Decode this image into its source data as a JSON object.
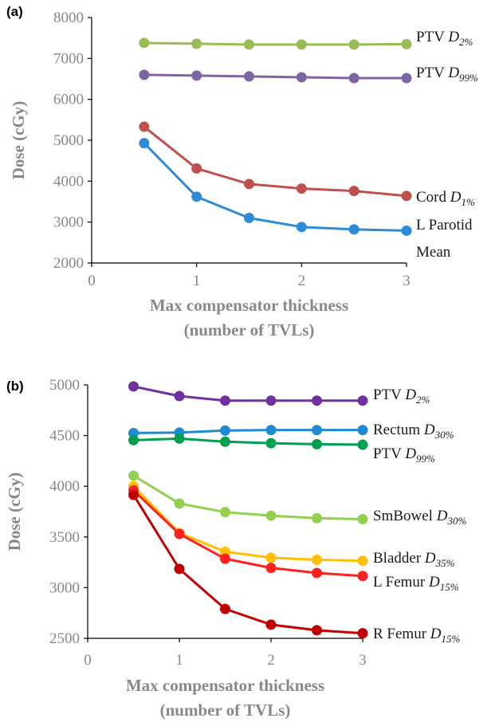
{
  "chart_data": [
    {
      "type": "line",
      "panel_label": "(a)",
      "xlabel": [
        "Max compensator thickness",
        "(number of TVLs)"
      ],
      "ylabel": "Dose (cGy)",
      "xlim": [
        0,
        3
      ],
      "ylim": [
        2000,
        8000
      ],
      "xticks": [
        0,
        1,
        2,
        3
      ],
      "yticks": [
        2000,
        3000,
        4000,
        5000,
        6000,
        7000,
        8000
      ],
      "x": [
        0.5,
        1,
        1.5,
        2,
        2.5,
        3
      ],
      "series": [
        {
          "label_main": "PTV ",
          "label_sub": "D",
          "label_subsub": "2%",
          "color": "#9bbb59",
          "values": [
            7380,
            7360,
            7340,
            7340,
            7340,
            7350
          ]
        },
        {
          "label_main": "PTV ",
          "label_sub": "D",
          "label_subsub": "99%",
          "color": "#8064a2",
          "values": [
            6600,
            6580,
            6560,
            6540,
            6520,
            6520
          ]
        },
        {
          "label_main": "Cord ",
          "label_sub": "D",
          "label_subsub": "1%",
          "color": "#c0504d",
          "values": [
            5330,
            4310,
            3930,
            3820,
            3760,
            3640
          ]
        },
        {
          "label_main": "L Parotid",
          "label_line2": "Mean",
          "color": "#2e8bd8",
          "values": [
            4930,
            3620,
            3100,
            2880,
            2820,
            2790
          ]
        }
      ]
    },
    {
      "type": "line",
      "panel_label": "(b)",
      "xlabel": [
        "Max compensator thickness",
        "(number of TVLs)"
      ],
      "ylabel": "Dose (cGy)",
      "xlim": [
        0,
        3
      ],
      "ylim": [
        2500,
        5000
      ],
      "xticks": [
        0,
        1,
        2,
        3
      ],
      "yticks": [
        2500,
        3000,
        3500,
        4000,
        4500,
        5000
      ],
      "x": [
        0.5,
        1,
        1.5,
        2,
        2.5,
        3
      ],
      "series": [
        {
          "label_main": "PTV ",
          "label_sub": "D",
          "label_subsub": "2%",
          "color": "#7030a0",
          "values": [
            4985,
            4890,
            4845,
            4845,
            4845,
            4845
          ]
        },
        {
          "label_main": "Rectum ",
          "label_sub": "D",
          "label_subsub": "30%",
          "color": "#1f8ad2",
          "values": [
            4525,
            4530,
            4550,
            4555,
            4555,
            4555
          ]
        },
        {
          "label_main": "PTV ",
          "label_sub": "D",
          "label_subsub": "99%",
          "color": "#00a050",
          "values": [
            4455,
            4470,
            4440,
            4425,
            4415,
            4410
          ]
        },
        {
          "label_main": "SmBowel ",
          "label_sub": "D",
          "label_subsub": "30%",
          "color": "#92d050",
          "values": [
            4105,
            3830,
            3745,
            3710,
            3685,
            3675
          ]
        },
        {
          "label_main": "Bladder ",
          "label_sub": "D",
          "label_subsub": "35%",
          "color": "#ffc000",
          "values": [
            4000,
            3540,
            3355,
            3295,
            3275,
            3265
          ]
        },
        {
          "label_main": "L Femur ",
          "label_sub": "D",
          "label_subsub": "15%",
          "color": "#ff2020",
          "values": [
            3960,
            3530,
            3285,
            3195,
            3145,
            3115
          ]
        },
        {
          "label_main": "R Femur ",
          "label_sub": "D",
          "label_subsub": "15%",
          "color": "#c00000",
          "values": [
            3915,
            3185,
            2790,
            2635,
            2580,
            2550
          ]
        }
      ]
    }
  ]
}
